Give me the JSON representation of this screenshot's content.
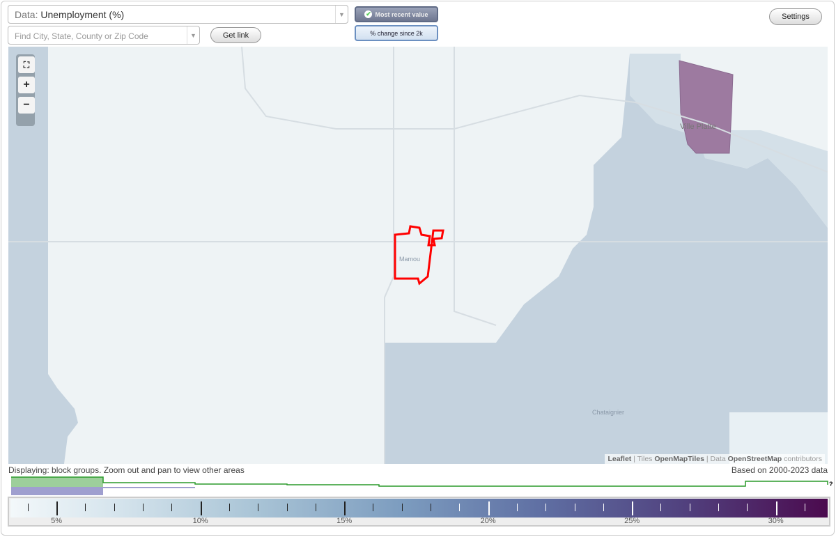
{
  "header": {
    "data_label": "Data:",
    "data_value": "Unemployment (%)",
    "search_placeholder": "Find City, State, County or Zip Code",
    "get_link": "Get link",
    "most_recent": "Most recent value",
    "pct_change": "% change since 2k",
    "settings": "Settings"
  },
  "map": {
    "places": [
      "Mamou",
      "Ville Platte",
      "Chataignier"
    ],
    "zoom_in": "+",
    "zoom_out": "−",
    "attribution": {
      "leaflet": "Leaflet",
      "tiles_prefix": "Tiles",
      "tiles": "OpenMapTiles",
      "data_prefix": "Data",
      "data": "OpenStreetMap",
      "suffix": "contributors"
    },
    "highlight_color": "#ff0000"
  },
  "footer": {
    "displaying": "Displaying: block groups. Zoom out and pan to view other areas",
    "based_on": "Based on 2000-2023 data",
    "help": "?"
  },
  "legend": {
    "min": 3.4,
    "max": 31.8,
    "labels": [
      "5%",
      "10%",
      "15%",
      "20%",
      "25%",
      "30%"
    ],
    "label_values": [
      5,
      10,
      15,
      20,
      25,
      30
    ],
    "colors": [
      "#f3f8fa",
      "#a9c4d6",
      "#5f6fa3",
      "#4b0a4e"
    ]
  }
}
